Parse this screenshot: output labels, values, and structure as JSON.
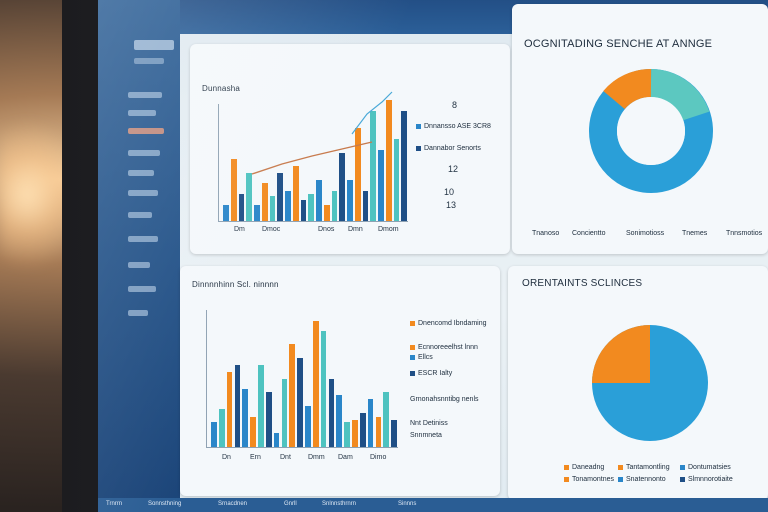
{
  "pie_top": {
    "title": "OCGNITADING SENCHE AT ANNGE",
    "legend": [
      "Tnanoso",
      "Concientto",
      "Sonimotioss",
      "Tnemes",
      "Tnnsmotios"
    ]
  },
  "pie_bottom": {
    "title": "ORENTAINTS SCLINCES",
    "legend": [
      "Daneadng",
      "Tantamontling",
      "Dontumatsies",
      "Tonamontnes",
      "Snatennonto",
      "Slmnnorotiaite"
    ]
  },
  "chart_top": {
    "title": "Dunnasha",
    "legend": [
      "Dnnansso ASE 3CR8",
      "Dannabor Senorts"
    ],
    "right_numbers": [
      "8",
      "12",
      "10",
      "13"
    ],
    "x_labels": [
      "Dm",
      "Dmoc",
      "Dnos",
      "Dmn",
      "Dmom"
    ]
  },
  "chart_bottom": {
    "title": "Dinnnnhinn Scl. ninnnn",
    "legend": [
      "Dnencomd Ibndaming",
      "Ecnnoreeelhst lnnn",
      "Ellcs",
      "ESCR Ialty",
      "Grnonahsnntibg nenls",
      "Nnt Detiniss",
      "Snnmneta"
    ],
    "x_labels": [
      "Dn",
      "Ern",
      "Dnt",
      "Dmm",
      "Dam",
      "Dimo"
    ]
  },
  "colors": {
    "blue": "#2a86c9",
    "orange": "#f28a1f",
    "teal": "#4ec3c0",
    "navy": "#1f4f86",
    "lightblue": "#5fb6e3"
  },
  "status_bar": [
    "Trnrrn",
    "Sonnsthning",
    "Srnacdnen",
    "Gnrll",
    "Snlnnsthrnrn",
    "Sinnns"
  ]
}
